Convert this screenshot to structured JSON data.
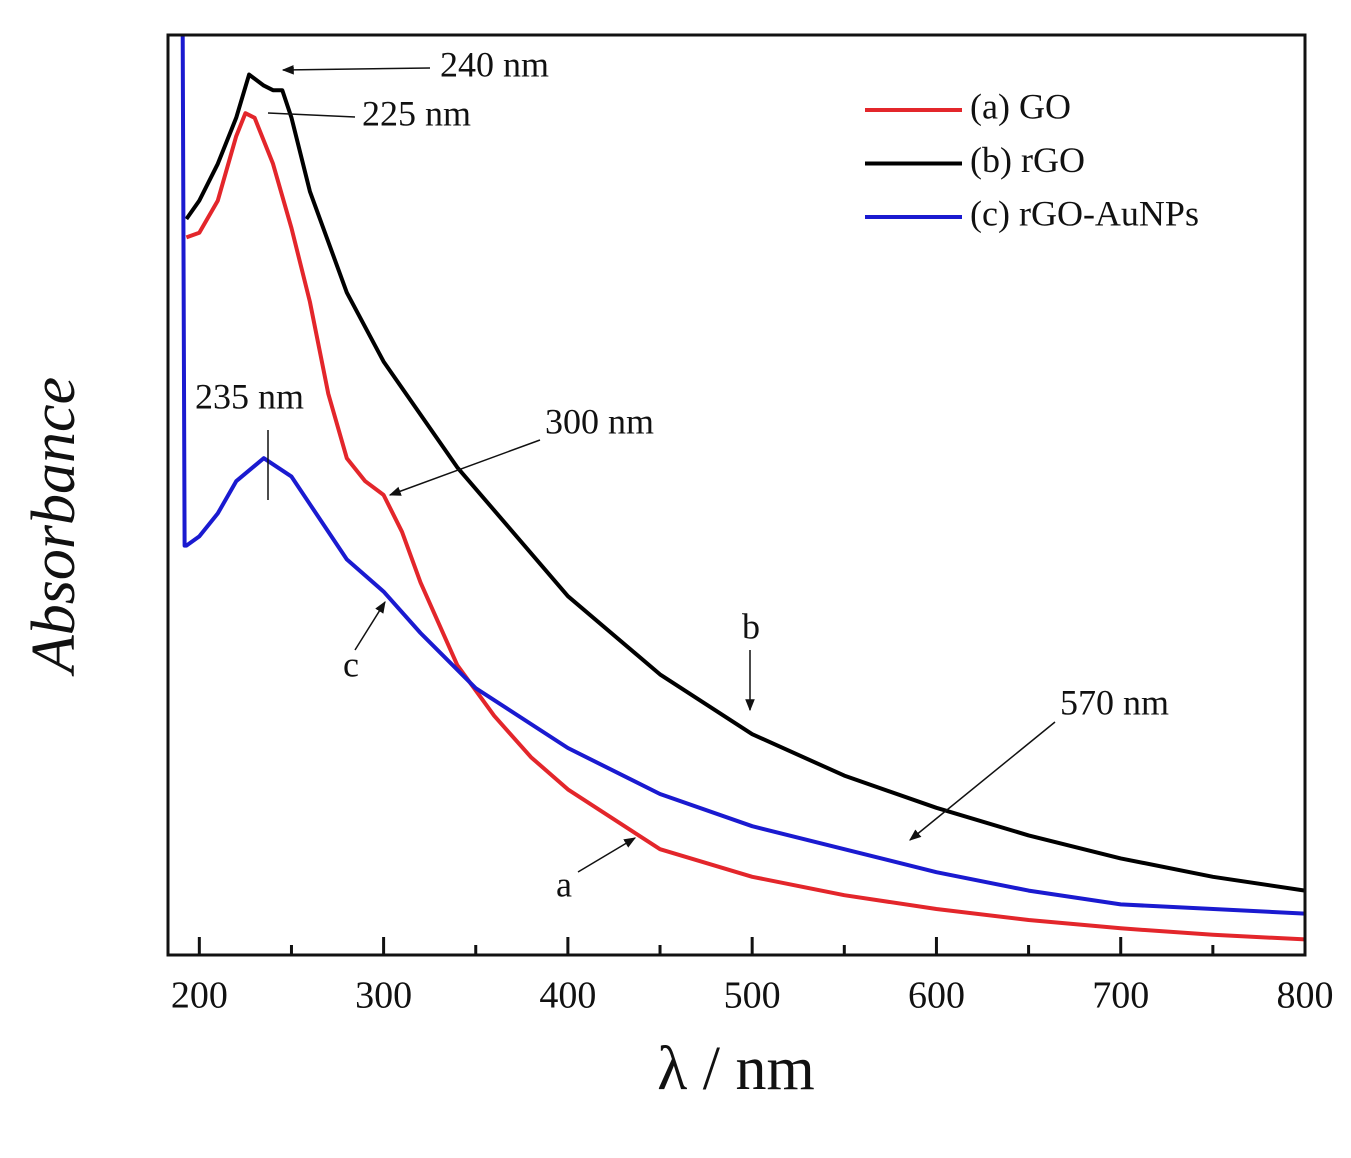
{
  "chart_data": {
    "type": "line",
    "xlabel": "λ / nm",
    "ylabel": "Absorbance",
    "xlim": [
      183,
      800
    ],
    "ylim": [
      0,
      100
    ],
    "xticks": [
      200,
      300,
      400,
      500,
      600,
      700,
      800
    ],
    "xminor_ticks": [
      250,
      350,
      450,
      550,
      650,
      750
    ],
    "legend": "upper right",
    "series": [
      {
        "name": "(a) GO",
        "color": "#e3262b",
        "x": [
          193,
          200,
          210,
          220,
          225,
          230,
          240,
          250,
          260,
          270,
          280,
          290,
          300,
          310,
          320,
          340,
          360,
          380,
          400,
          450,
          500,
          550,
          600,
          650,
          700,
          750,
          800
        ],
        "values": [
          78,
          78.5,
          82,
          89,
          91.5,
          91,
          86,
          79,
          71,
          61,
          54,
          51.5,
          50,
          46,
          40.5,
          31.5,
          26,
          21.5,
          18,
          11.5,
          8.5,
          6.5,
          5,
          3.8,
          2.9,
          2.2,
          1.7
        ]
      },
      {
        "name": "(b) rGO",
        "color": "#000000",
        "x": [
          193,
          200,
          210,
          220,
          227,
          235,
          240,
          245,
          250,
          260,
          280,
          300,
          340,
          400,
          450,
          500,
          550,
          600,
          650,
          700,
          750,
          800
        ],
        "values": [
          80,
          82,
          86,
          91,
          95.7,
          94.5,
          94,
          94,
          91,
          83,
          72,
          64.5,
          53,
          39,
          30.5,
          24,
          19.5,
          16,
          13,
          10.5,
          8.5,
          7
        ]
      },
      {
        "name": "(c) rGO-AuNPs",
        "color": "#1a1ad0",
        "x": [
          191,
          192,
          193,
          200,
          210,
          220,
          235,
          250,
          260,
          280,
          300,
          320,
          350,
          400,
          450,
          500,
          550,
          600,
          650,
          700,
          800
        ],
        "values": [
          100,
          44.5,
          44.5,
          45.5,
          48,
          51.5,
          54,
          52,
          49,
          43,
          39.5,
          35,
          29,
          22.5,
          17.5,
          14,
          11.5,
          9,
          7,
          5.5,
          4.5
        ]
      }
    ],
    "annotations": [
      "240 nm",
      "225 nm",
      "235 nm",
      "300 nm",
      "570 nm",
      "b",
      "c",
      "a"
    ]
  }
}
